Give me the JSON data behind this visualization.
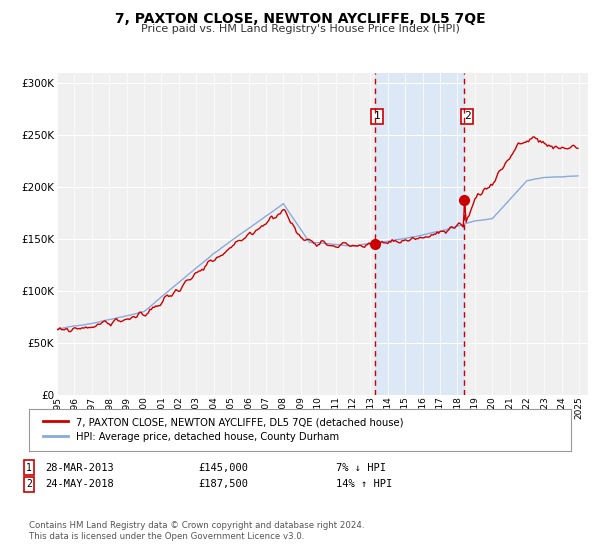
{
  "title": "7, PAXTON CLOSE, NEWTON AYCLIFFE, DL5 7QE",
  "subtitle": "Price paid vs. HM Land Registry's House Price Index (HPI)",
  "property_label": "7, PAXTON CLOSE, NEWTON AYCLIFFE, DL5 7QE (detached house)",
  "hpi_label": "HPI: Average price, detached house, County Durham",
  "sale1_date": "28-MAR-2013",
  "sale1_price": 145000,
  "sale1_pct": "7% ↓ HPI",
  "sale2_date": "24-MAY-2018",
  "sale2_price": 187500,
  "sale2_pct": "14% ↑ HPI",
  "sale1_year": 2013.24,
  "sale2_year": 2018.4,
  "property_color": "#cc0000",
  "hpi_color": "#88aadd",
  "shaded_color": "#dce8f5",
  "vline_color": "#cc0000",
  "xlim_min": 1995,
  "xlim_max": 2025.5,
  "ylim_min": 0,
  "ylim_max": 310000,
  "footnote1": "Contains HM Land Registry data © Crown copyright and database right 2024.",
  "footnote2": "This data is licensed under the Open Government Licence v3.0.",
  "background_color": "#ffffff",
  "plot_bg_color": "#f0f0f0"
}
